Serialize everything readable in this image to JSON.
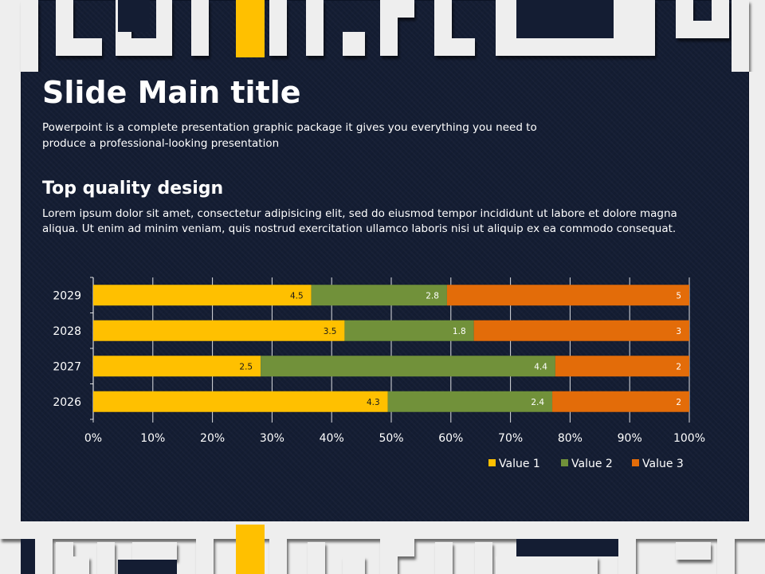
{
  "slide": {
    "title": "Slide Main title",
    "subtitle": "Powerpoint is a complete presentation graphic package it gives you everything you need to produce a professional-looking presentation",
    "heading": "Top quality design",
    "body": "Lorem ipsum dolor sit amet, consectetur adipisicing elit, sed do eiusmod tempor incididunt ut labore et dolore magna aliqua. Ut enim ad minim veniam, quis nostrud exercitation ullamco laboris nisi ut aliquip ex ea commodo consequat."
  },
  "colors": {
    "background": "#141d33",
    "frame": "#eeeeee",
    "accent": "#ffc000",
    "value1": "#ffc000",
    "value2": "#71913a",
    "value3": "#e36c09"
  },
  "chart_data": {
    "type": "bar",
    "orientation": "horizontal",
    "stacking": "percent",
    "categories": [
      "2026",
      "2027",
      "2028",
      "2029"
    ],
    "series": [
      {
        "name": "Value  1",
        "values": [
          4.3,
          2.5,
          3.5,
          4.5
        ]
      },
      {
        "name": "Value  2",
        "values": [
          2.4,
          4.4,
          1.8,
          2.8
        ]
      },
      {
        "name": "Value  3",
        "values": [
          2,
          2,
          3,
          5
        ]
      }
    ],
    "xticks": [
      "0%",
      "10%",
      "20%",
      "30%",
      "40%",
      "50%",
      "60%",
      "70%",
      "80%",
      "90%",
      "100%"
    ],
    "xlim": [
      0,
      100
    ],
    "grid": true,
    "legend": "bottom-right",
    "title": "",
    "xlabel": "",
    "ylabel": ""
  }
}
